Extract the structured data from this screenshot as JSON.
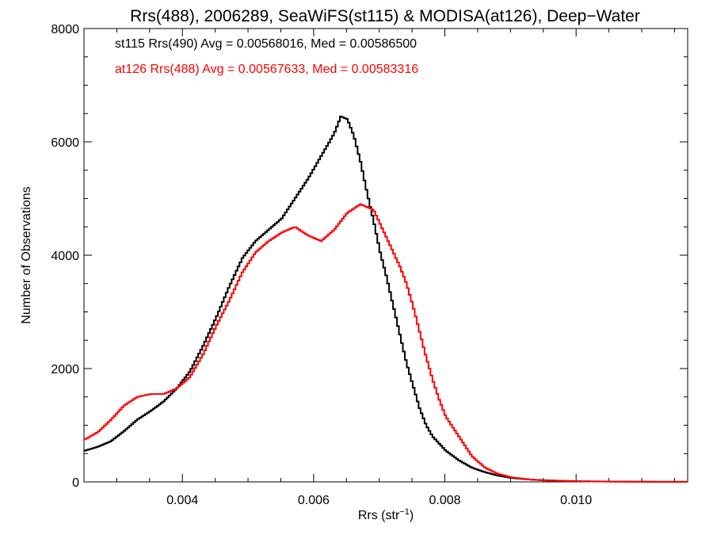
{
  "chart_data": {
    "type": "line",
    "step": true,
    "title": "Rrs(488), 2006289, SeaWiFS(st115) & MODISA(at126), Deep−Water",
    "xlabel": "Rrs (str",
    "xlabel_sup": "−1",
    "xlabel_end": ")",
    "ylabel": "Number of Observations",
    "xlim": [
      0.0025,
      0.0117
    ],
    "ylim": [
      0,
      8000
    ],
    "xticks": [
      0.004,
      0.006,
      0.008,
      0.01
    ],
    "xtick_labels": [
      "0.004",
      "0.006",
      "0.008",
      "0.010"
    ],
    "yticks": [
      0,
      2000,
      4000,
      6000,
      8000
    ],
    "ytick_labels": [
      "0",
      "2000",
      "4000",
      "6000",
      "8000"
    ],
    "grid": false,
    "legend_position": "top-left",
    "annotations": [
      {
        "text": "st115 Rrs(490) Avg = 0.00568016, Med = 0.00586500",
        "color": "#000000"
      },
      {
        "text": "at126 Rrs(488) Avg = 0.00567633, Med = 0.00583316",
        "color": "#ff0000"
      }
    ],
    "series": [
      {
        "color": "#000000",
        "x": [
          0.0025,
          0.0027,
          0.0029,
          0.0031,
          0.0033,
          0.0035,
          0.0037,
          0.0039,
          0.0041,
          0.0043,
          0.0045,
          0.0047,
          0.0049,
          0.0051,
          0.0053,
          0.0055,
          0.0057,
          0.0059,
          0.0061,
          0.0063,
          0.0064,
          0.0065,
          0.0066,
          0.0067,
          0.0068,
          0.0069,
          0.007,
          0.0071,
          0.0072,
          0.0073,
          0.0074,
          0.0075,
          0.0076,
          0.0077,
          0.0078,
          0.008,
          0.0082,
          0.0084,
          0.0086,
          0.0088,
          0.009,
          0.0093,
          0.0096,
          0.01,
          0.0105,
          0.011,
          0.0117
        ],
        "y": [
          550,
          620,
          720,
          900,
          1100,
          1250,
          1420,
          1650,
          1950,
          2400,
          2900,
          3450,
          3950,
          4250,
          4450,
          4650,
          5000,
          5350,
          5750,
          6150,
          6450,
          6400,
          6100,
          5650,
          5100,
          4600,
          4050,
          3600,
          3100,
          2600,
          2100,
          1700,
          1300,
          1000,
          800,
          550,
          380,
          250,
          170,
          110,
          70,
          40,
          25,
          12,
          6,
          3,
          1
        ]
      },
      {
        "color": "#ff0000",
        "x": [
          0.0025,
          0.0027,
          0.0029,
          0.0031,
          0.0033,
          0.0035,
          0.0037,
          0.0039,
          0.0041,
          0.0043,
          0.0045,
          0.0047,
          0.0049,
          0.0051,
          0.0053,
          0.0055,
          0.0057,
          0.0059,
          0.0061,
          0.0063,
          0.0065,
          0.0067,
          0.0069,
          0.0071,
          0.0073,
          0.0074,
          0.0075,
          0.0076,
          0.0077,
          0.0078,
          0.0079,
          0.008,
          0.0082,
          0.0084,
          0.0086,
          0.0088,
          0.009,
          0.0093,
          0.0096,
          0.01,
          0.0105,
          0.011,
          0.0117
        ],
        "y": [
          750,
          880,
          1100,
          1350,
          1500,
          1550,
          1550,
          1650,
          1850,
          2250,
          2750,
          3200,
          3700,
          4050,
          4250,
          4400,
          4500,
          4350,
          4250,
          4450,
          4750,
          4900,
          4800,
          4300,
          3800,
          3500,
          3100,
          2650,
          2200,
          1800,
          1450,
          1150,
          800,
          450,
          250,
          140,
          80,
          40,
          20,
          10,
          5,
          2,
          1
        ]
      }
    ]
  }
}
